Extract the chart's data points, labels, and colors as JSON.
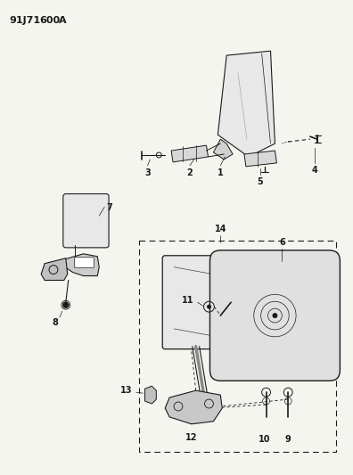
{
  "title_code": "91J71 600 A",
  "background_color": "#f5f5f0",
  "line_color": "#1a1a1a",
  "figsize": [
    3.96,
    5.33
  ],
  "dpi": 100,
  "font_size_title": 8,
  "font_size_label": 7
}
